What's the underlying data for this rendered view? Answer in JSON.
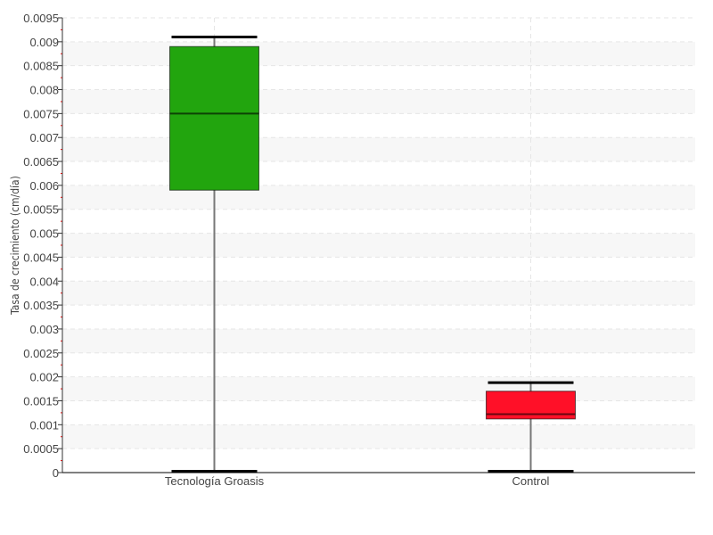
{
  "chart_data": {
    "type": "boxplot",
    "title": "",
    "xlabel": "",
    "ylabel": "Tasa de crecimiento (cm/día)",
    "ylim": [
      0,
      0.0095
    ],
    "ytick_step": 0.0005,
    "yticks": [
      "0",
      "0.0005",
      "0.001",
      "0.0015",
      "0.002",
      "0.0025",
      "0.003",
      "0.0035",
      "0.004",
      "0.0045",
      "0.005",
      "0.0055",
      "0.006",
      "0.0065",
      "0.007",
      "0.0075",
      "0.008",
      "0.0085",
      "0.009",
      "0.0095"
    ],
    "grid": true,
    "categories": [
      "Tecnología Groasis",
      "Control"
    ],
    "boxes": [
      {
        "category": "Tecnología Groasis",
        "min": 0,
        "q1": 0.0059,
        "median": 0.0075,
        "q3": 0.0089,
        "max": 0.0091,
        "color": "#22a50e"
      },
      {
        "category": "Control",
        "min": 0,
        "q1": 0.00112,
        "median": 0.00122,
        "q3": 0.0017,
        "max": 0.00188,
        "color": "#ff1028"
      }
    ]
  }
}
